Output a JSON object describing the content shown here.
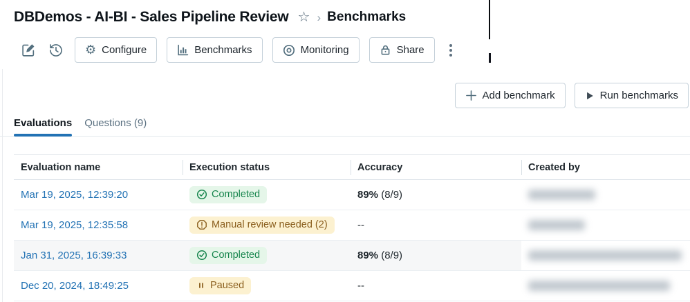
{
  "header": {
    "title": "DBDemos - AI-BI - Sales Pipeline Review",
    "breadcrumb": "Benchmarks"
  },
  "icons": {
    "star": "☆",
    "breadcrumb_separator": "›",
    "gear": "⚙"
  },
  "toolbar": {
    "configure_label": "Configure",
    "benchmarks_label": "Benchmarks",
    "monitoring_label": "Monitoring",
    "share_label": "Share"
  },
  "actions": {
    "add_benchmark_label": "Add benchmark",
    "run_benchmarks_label": "Run benchmarks"
  },
  "tabs": {
    "evaluations_label": "Evaluations",
    "questions_label": "Questions (9)"
  },
  "table": {
    "columns": [
      "Evaluation name",
      "Execution status",
      "Accuracy",
      "Created by"
    ],
    "rows": [
      {
        "name": "Mar 19, 2025, 12:39:20",
        "status": "Completed",
        "status_type": "success",
        "accuracy_bold": "89%",
        "accuracy_rest": " (8/9)",
        "created_by_redacted": true,
        "redacted_width": 97,
        "highlighted": false
      },
      {
        "name": "Mar 19, 2025, 12:35:58",
        "status": "Manual review needed (2)",
        "status_type": "warning",
        "accuracy_bold": "",
        "accuracy_rest": "--",
        "created_by_redacted": true,
        "redacted_width": 82,
        "highlighted": false
      },
      {
        "name": "Jan 31, 2025, 16:39:33",
        "status": "Completed",
        "status_type": "success",
        "accuracy_bold": "89%",
        "accuracy_rest": " (8/9)",
        "created_by_redacted": true,
        "redacted_width": 222,
        "highlighted": true
      },
      {
        "name": "Dec 20, 2024, 18:49:25",
        "status": "Paused",
        "status_type": "paused",
        "accuracy_bold": "",
        "accuracy_rest": "--",
        "created_by_redacted": true,
        "redacted_width": 205,
        "highlighted": false
      }
    ]
  },
  "colors": {
    "link_blue": "#2272b4",
    "tab_accent": "#2272b4",
    "success_bg": "#e5f6e9",
    "success_text": "#17854d",
    "warning_bg": "#fcf1d0",
    "warning_text": "#8a5e1d",
    "button_border": "#c4d0d9",
    "icon_slate": "#54707f"
  }
}
